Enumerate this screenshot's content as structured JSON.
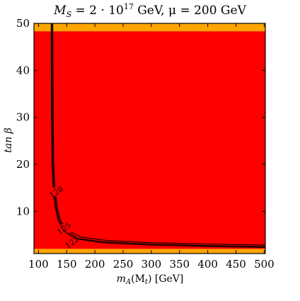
{
  "chart_data": {
    "type": "heatmap",
    "title": "M_S = 2 · 10^17 GeV, μ = 200 GeV",
    "title_parts": {
      "pre": "M",
      "sub": "S",
      "mid": " = 2 · 10",
      "sup": "17",
      "post": " GeV, μ = 200 GeV"
    },
    "xlabel": "m_A(M_t) [GeV]",
    "xlabel_parts": {
      "m": "m",
      "sub": "A",
      "rest": "(M",
      "sub2": "t",
      "end": ") [GeV]"
    },
    "ylabel": "tan β",
    "xlim": [
      92,
      502
    ],
    "ylim": [
      1,
      50
    ],
    "xticks": [
      100,
      150,
      200,
      250,
      300,
      350,
      400,
      450,
      500
    ],
    "yticks": [
      10,
      20,
      30,
      40,
      50
    ],
    "grid": false,
    "regions": [
      {
        "name": "excluded",
        "color": "#ff0000",
        "x": [
          92,
          502
        ],
        "y": [
          2,
          48.3
        ]
      },
      {
        "name": "allowed",
        "color": "#ffa500",
        "x": [
          92,
          502
        ],
        "y": [
          1,
          50
        ]
      }
    ],
    "contours": [
      {
        "label": "122",
        "label_at": [
          160,
          3.3
        ],
        "points": [
          [
            125.5,
            50
          ],
          [
            126,
            30
          ],
          [
            127,
            20
          ],
          [
            129,
            15
          ],
          [
            133,
            11
          ],
          [
            139,
            8
          ],
          [
            150,
            6
          ],
          [
            175,
            4.5
          ],
          [
            220,
            3.8
          ],
          [
            300,
            3.3
          ],
          [
            400,
            3.0
          ],
          [
            502,
            2.8
          ]
        ]
      },
      {
        "label": "125",
        "label_at": [
          146,
          6.2
        ],
        "points": [
          [
            124,
            50
          ],
          [
            124.5,
            30
          ],
          [
            125.5,
            20
          ],
          [
            127.5,
            15
          ],
          [
            131,
            11
          ],
          [
            137,
            8
          ],
          [
            147,
            6
          ],
          [
            170,
            4.2
          ],
          [
            215,
            3.5
          ],
          [
            300,
            3.0
          ],
          [
            400,
            2.7
          ],
          [
            502,
            2.5
          ]
        ]
      },
      {
        "label": "128",
        "label_at": [
          132,
          14
        ],
        "points": [
          [
            122.5,
            50
          ],
          [
            123,
            30
          ],
          [
            124,
            20
          ],
          [
            126,
            15
          ],
          [
            129.5,
            11
          ],
          [
            135,
            8
          ],
          [
            145,
            5.8
          ],
          [
            165,
            4.2
          ],
          [
            210,
            3.3
          ],
          [
            300,
            2.8
          ],
          [
            400,
            2.5
          ],
          [
            502,
            2.3
          ]
        ]
      }
    ],
    "colors": {
      "excluded": "#ff0000",
      "allowed": "#ffa500",
      "contour": "#000000"
    }
  }
}
